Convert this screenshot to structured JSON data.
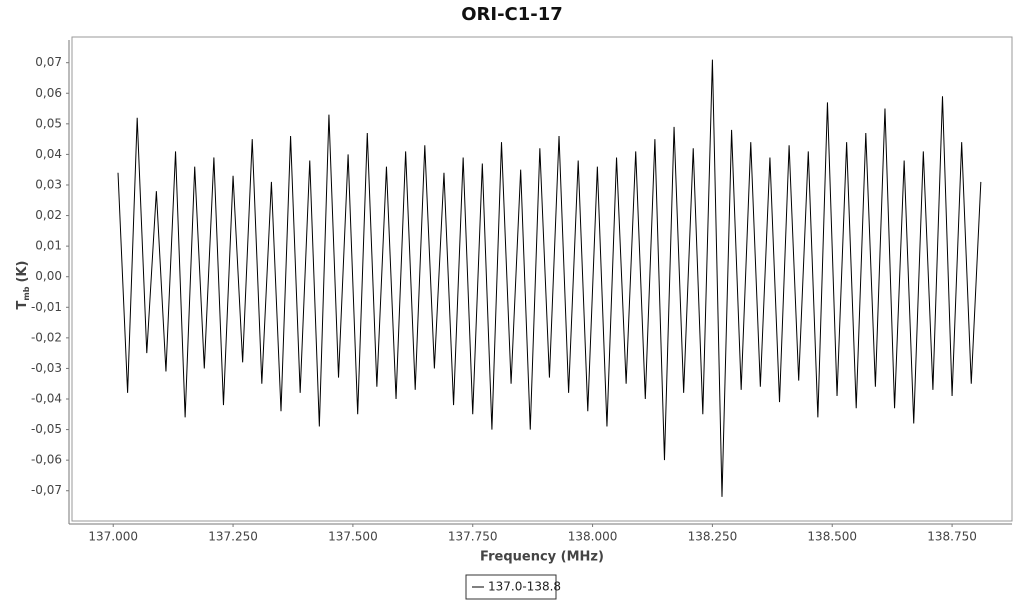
{
  "chart_data": {
    "type": "line",
    "title": "ORI-C1-17",
    "x_label": "Frequency (MHz)",
    "y_label": {
      "main": "T",
      "sub": "mb",
      "unit": "(K)"
    },
    "x": [
      137.01,
      137.03,
      137.05,
      137.07,
      137.09,
      137.11,
      137.13,
      137.15,
      137.17,
      137.19,
      137.21,
      137.23,
      137.25,
      137.27,
      137.29,
      137.31,
      137.33,
      137.35,
      137.37,
      137.39,
      137.41,
      137.43,
      137.45,
      137.47,
      137.49,
      137.51,
      137.53,
      137.55,
      137.57,
      137.59,
      137.61,
      137.63,
      137.65,
      137.67,
      137.69,
      137.71,
      137.73,
      137.75,
      137.77,
      137.79,
      137.81,
      137.83,
      137.85,
      137.87,
      137.89,
      137.91,
      137.93,
      137.95,
      137.97,
      137.99,
      138.01,
      138.03,
      138.05,
      138.07,
      138.09,
      138.11,
      138.13,
      138.15,
      138.17,
      138.19,
      138.21,
      138.23,
      138.25,
      138.27,
      138.29,
      138.31,
      138.33,
      138.35,
      138.37,
      138.39,
      138.41,
      138.43,
      138.45,
      138.47,
      138.49,
      138.51,
      138.53,
      138.55,
      138.57,
      138.59,
      138.61,
      138.63,
      138.65,
      138.67,
      138.69,
      138.71,
      138.73,
      138.75,
      138.77,
      138.79,
      138.81
    ],
    "series": [
      {
        "name": "137.0-138.8",
        "color": "#000000",
        "values": [
          0.034,
          -0.038,
          0.052,
          -0.025,
          0.028,
          -0.031,
          0.041,
          -0.046,
          0.036,
          -0.03,
          0.039,
          -0.042,
          0.033,
          -0.028,
          0.045,
          -0.035,
          0.031,
          -0.044,
          0.046,
          -0.038,
          0.038,
          -0.049,
          0.053,
          -0.033,
          0.04,
          -0.045,
          0.047,
          -0.036,
          0.036,
          -0.04,
          0.041,
          -0.037,
          0.043,
          -0.03,
          0.034,
          -0.042,
          0.039,
          -0.045,
          0.037,
          -0.05,
          0.044,
          -0.035,
          0.035,
          -0.05,
          0.042,
          -0.033,
          0.046,
          -0.038,
          0.038,
          -0.044,
          0.036,
          -0.049,
          0.039,
          -0.035,
          0.041,
          -0.04,
          0.045,
          -0.06,
          0.049,
          -0.038,
          0.042,
          -0.045,
          0.071,
          -0.072,
          0.048,
          -0.037,
          0.044,
          -0.036,
          0.039,
          -0.041,
          0.043,
          -0.034,
          0.041,
          -0.046,
          0.057,
          -0.039,
          0.044,
          -0.043,
          0.047,
          -0.036,
          0.055,
          -0.043,
          0.038,
          -0.048,
          0.041,
          -0.037,
          0.059,
          -0.039,
          0.044,
          -0.035,
          0.031
        ]
      }
    ],
    "xlim": [
      136.914,
      138.875
    ],
    "ylim": [
      -0.0799,
      0.0784
    ],
    "xticks": [
      {
        "value": 137,
        "label": "137.000"
      },
      {
        "value": 137.25,
        "label": "137.250"
      },
      {
        "value": 137.5,
        "label": "137.500"
      },
      {
        "value": 137.75,
        "label": "137.750"
      },
      {
        "value": 138,
        "label": "138.000"
      },
      {
        "value": 138.25,
        "label": "138.250"
      },
      {
        "value": 138.5,
        "label": "138.500"
      },
      {
        "value": 138.75,
        "label": "138.750"
      }
    ],
    "yticks": [
      {
        "value": -0.07,
        "label": "-0,07"
      },
      {
        "value": -0.06,
        "label": "-0,06"
      },
      {
        "value": -0.05,
        "label": "-0,05"
      },
      {
        "value": -0.04,
        "label": "-0,04"
      },
      {
        "value": -0.03,
        "label": "-0,03"
      },
      {
        "value": -0.02,
        "label": "-0,02"
      },
      {
        "value": -0.01,
        "label": "-0,01"
      },
      {
        "value": 0,
        "label": "0,00"
      },
      {
        "value": 0.01,
        "label": "0,01"
      },
      {
        "value": 0.02,
        "label": "0,02"
      },
      {
        "value": 0.03,
        "label": "0,03"
      },
      {
        "value": 0.04,
        "label": "0,04"
      },
      {
        "value": 0.05,
        "label": "0,05"
      },
      {
        "value": 0.06,
        "label": "0,06"
      },
      {
        "value": 0.07,
        "label": "0,07"
      }
    ],
    "grid": false,
    "legend": "bottom"
  }
}
